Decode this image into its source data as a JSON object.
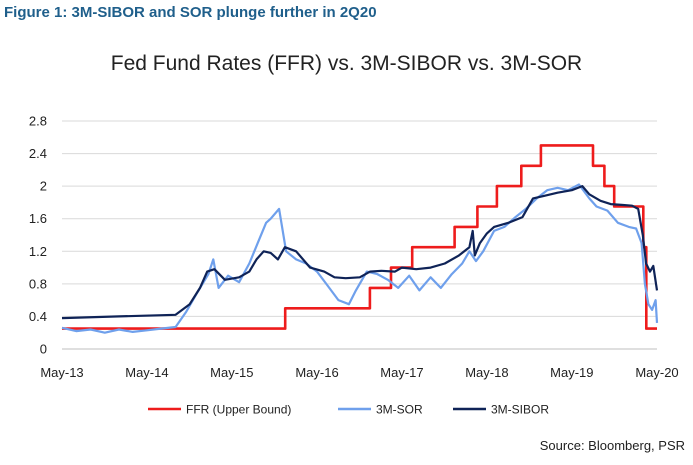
{
  "figure_title": "Figure 1: 3M-SIBOR and SOR plunge further in 2Q20",
  "source": "Source: Bloomberg, PSR",
  "chart_data": {
    "type": "line",
    "title": "Fed Fund Rates (FFR) vs. 3M-SIBOR vs. 3M-SOR",
    "xlabel": "",
    "ylabel": "",
    "ylim": [
      0,
      2.8
    ],
    "yticks": [
      "0",
      "0.4",
      "0.8",
      "1.2",
      "1.6",
      "2",
      "2.4",
      "2.8"
    ],
    "xticks": [
      "May-13",
      "May-14",
      "May-15",
      "May-16",
      "May-17",
      "May-18",
      "May-19",
      "May-20"
    ],
    "grid": "horizontal",
    "legend_position": "bottom",
    "series": [
      {
        "name": "FFR (Upper Bound)",
        "color": "#ee1c1c",
        "step": true,
        "points": [
          [
            "2013-05-01",
            0.25
          ],
          [
            "2015-12-16",
            0.5
          ],
          [
            "2016-12-14",
            0.75
          ],
          [
            "2017-03-15",
            1.0
          ],
          [
            "2017-06-14",
            1.25
          ],
          [
            "2017-12-13",
            1.5
          ],
          [
            "2018-03-21",
            1.75
          ],
          [
            "2018-06-13",
            2.0
          ],
          [
            "2018-09-26",
            2.25
          ],
          [
            "2018-12-19",
            2.5
          ],
          [
            "2019-07-31",
            2.25
          ],
          [
            "2019-09-18",
            2.0
          ],
          [
            "2019-10-30",
            1.75
          ],
          [
            "2020-03-03",
            1.25
          ],
          [
            "2020-03-16",
            0.25
          ],
          [
            "2020-05-01",
            0.25
          ]
        ]
      },
      {
        "name": "3M-SOR",
        "color": "#6fa0ec",
        "step": false,
        "points": [
          [
            "2013-05-01",
            0.26
          ],
          [
            "2013-07-01",
            0.22
          ],
          [
            "2013-09-01",
            0.24
          ],
          [
            "2013-11-01",
            0.2
          ],
          [
            "2014-01-01",
            0.24
          ],
          [
            "2014-03-01",
            0.21
          ],
          [
            "2014-05-01",
            0.23
          ],
          [
            "2014-07-01",
            0.25
          ],
          [
            "2014-09-01",
            0.27
          ],
          [
            "2014-10-15",
            0.45
          ],
          [
            "2014-12-01",
            0.68
          ],
          [
            "2015-01-20",
            0.92
          ],
          [
            "2015-02-10",
            1.1
          ],
          [
            "2015-03-05",
            0.75
          ],
          [
            "2015-04-15",
            0.9
          ],
          [
            "2015-06-01",
            0.82
          ],
          [
            "2015-07-15",
            1.05
          ],
          [
            "2015-08-20",
            1.3
          ],
          [
            "2015-09-25",
            1.55
          ],
          [
            "2015-10-15",
            1.6
          ],
          [
            "2015-11-20",
            1.72
          ],
          [
            "2015-12-20",
            1.2
          ],
          [
            "2016-02-01",
            1.1
          ],
          [
            "2016-03-15",
            1.05
          ],
          [
            "2016-05-01",
            0.95
          ],
          [
            "2016-06-15",
            0.78
          ],
          [
            "2016-08-01",
            0.6
          ],
          [
            "2016-09-15",
            0.55
          ],
          [
            "2016-10-15",
            0.72
          ],
          [
            "2016-12-01",
            0.95
          ],
          [
            "2017-01-15",
            0.92
          ],
          [
            "2017-03-01",
            0.85
          ],
          [
            "2017-04-15",
            0.75
          ],
          [
            "2017-06-01",
            0.9
          ],
          [
            "2017-07-15",
            0.72
          ],
          [
            "2017-09-01",
            0.88
          ],
          [
            "2017-10-15",
            0.75
          ],
          [
            "2017-12-01",
            0.92
          ],
          [
            "2018-01-15",
            1.05
          ],
          [
            "2018-02-15",
            1.2
          ],
          [
            "2018-03-15",
            1.08
          ],
          [
            "2018-04-15",
            1.2
          ],
          [
            "2018-06-01",
            1.45
          ],
          [
            "2018-07-15",
            1.5
          ],
          [
            "2018-09-01",
            1.62
          ],
          [
            "2018-10-15",
            1.72
          ],
          [
            "2018-12-01",
            1.85
          ],
          [
            "2019-01-15",
            1.95
          ],
          [
            "2019-03-01",
            1.98
          ],
          [
            "2019-04-15",
            1.95
          ],
          [
            "2019-06-01",
            2.02
          ],
          [
            "2019-07-15",
            1.85
          ],
          [
            "2019-08-15",
            1.75
          ],
          [
            "2019-10-01",
            1.7
          ],
          [
            "2019-11-15",
            1.55
          ],
          [
            "2020-01-01",
            1.5
          ],
          [
            "2020-02-01",
            1.48
          ],
          [
            "2020-02-25",
            1.3
          ],
          [
            "2020-03-10",
            0.8
          ],
          [
            "2020-03-25",
            0.55
          ],
          [
            "2020-04-10",
            0.48
          ],
          [
            "2020-04-25",
            0.6
          ],
          [
            "2020-05-01",
            0.32
          ]
        ]
      },
      {
        "name": "3M-SIBOR",
        "color": "#0f2357",
        "step": false,
        "points": [
          [
            "2013-05-01",
            0.38
          ],
          [
            "2014-01-01",
            0.4
          ],
          [
            "2014-09-01",
            0.42
          ],
          [
            "2014-11-01",
            0.55
          ],
          [
            "2014-12-15",
            0.75
          ],
          [
            "2015-01-15",
            0.95
          ],
          [
            "2015-02-15",
            0.98
          ],
          [
            "2015-04-01",
            0.85
          ],
          [
            "2015-06-01",
            0.88
          ],
          [
            "2015-07-15",
            0.95
          ],
          [
            "2015-08-15",
            1.1
          ],
          [
            "2015-09-15",
            1.2
          ],
          [
            "2015-10-15",
            1.18
          ],
          [
            "2015-11-15",
            1.1
          ],
          [
            "2015-12-15",
            1.25
          ],
          [
            "2016-02-01",
            1.2
          ],
          [
            "2016-04-01",
            1.0
          ],
          [
            "2016-06-01",
            0.95
          ],
          [
            "2016-07-15",
            0.88
          ],
          [
            "2016-09-01",
            0.87
          ],
          [
            "2016-11-01",
            0.88
          ],
          [
            "2016-12-15",
            0.95
          ],
          [
            "2017-02-01",
            0.96
          ],
          [
            "2017-04-01",
            0.95
          ],
          [
            "2017-05-01",
            1.0
          ],
          [
            "2017-07-01",
            0.98
          ],
          [
            "2017-09-01",
            1.0
          ],
          [
            "2017-11-01",
            1.05
          ],
          [
            "2018-01-01",
            1.15
          ],
          [
            "2018-02-15",
            1.25
          ],
          [
            "2018-03-01",
            1.45
          ],
          [
            "2018-03-10",
            1.15
          ],
          [
            "2018-04-01",
            1.3
          ],
          [
            "2018-05-01",
            1.42
          ],
          [
            "2018-06-01",
            1.5
          ],
          [
            "2018-08-01",
            1.55
          ],
          [
            "2018-10-01",
            1.62
          ],
          [
            "2018-11-15",
            1.85
          ],
          [
            "2019-01-01",
            1.88
          ],
          [
            "2019-03-01",
            1.92
          ],
          [
            "2019-05-01",
            1.95
          ],
          [
            "2019-06-15",
            2.0
          ],
          [
            "2019-07-15",
            1.9
          ],
          [
            "2019-09-01",
            1.82
          ],
          [
            "2019-10-15",
            1.78
          ],
          [
            "2019-12-01",
            1.77
          ],
          [
            "2020-01-15",
            1.76
          ],
          [
            "2020-02-10",
            1.72
          ],
          [
            "2020-03-01",
            1.4
          ],
          [
            "2020-03-15",
            1.05
          ],
          [
            "2020-04-01",
            0.95
          ],
          [
            "2020-04-15",
            1.02
          ],
          [
            "2020-05-01",
            0.72
          ]
        ]
      }
    ]
  }
}
